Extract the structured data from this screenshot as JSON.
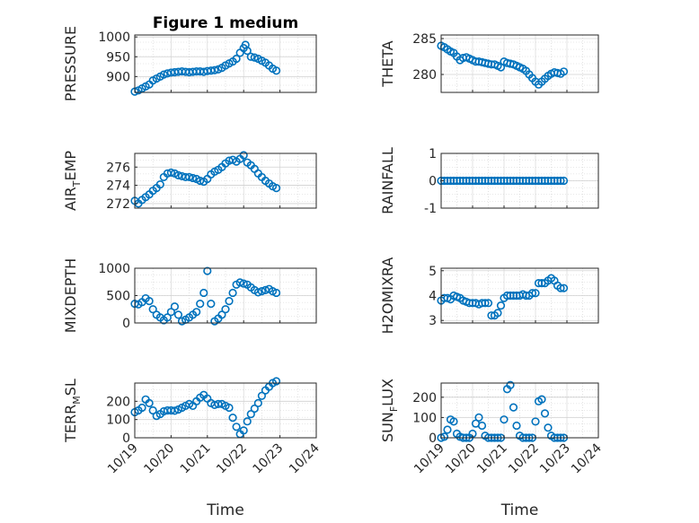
{
  "figure": {
    "title": "Figure 1 medium",
    "marker_color": "#0072BD",
    "axis_color": "#262626",
    "grid_color": "#d0d0d0"
  },
  "chart_data": [
    {
      "type": "scatter",
      "ylabel": "PRESSURE",
      "ylabel_sub": "",
      "ylabel_tail": "",
      "title": "Figure 1 medium",
      "xlim": [
        0,
        5
      ],
      "ylim": [
        860,
        1005
      ],
      "yticks": [
        900,
        950,
        1000
      ],
      "yticklabels": [
        "900",
        "950",
        "1000"
      ],
      "xticklabels": [],
      "xlabel": "",
      "x": [
        0,
        0.1,
        0.2,
        0.3,
        0.4,
        0.5,
        0.6,
        0.7,
        0.8,
        0.9,
        1,
        1.1,
        1.2,
        1.3,
        1.4,
        1.5,
        1.6,
        1.7,
        1.8,
        1.9,
        2,
        2.1,
        2.2,
        2.3,
        2.4,
        2.5,
        2.6,
        2.7,
        2.8,
        2.9,
        3,
        3.05,
        3.1,
        3.2,
        3.3,
        3.4,
        3.5,
        3.6,
        3.7,
        3.8,
        3.9
      ],
      "y": [
        862,
        865,
        870,
        875,
        880,
        890,
        895,
        900,
        905,
        908,
        910,
        911,
        912,
        913,
        912,
        911,
        912,
        913,
        913,
        912,
        914,
        915,
        916,
        918,
        922,
        928,
        933,
        938,
        945,
        960,
        972,
        980,
        965,
        950,
        948,
        945,
        940,
        935,
        928,
        920,
        915
      ]
    },
    {
      "type": "scatter",
      "ylabel": "THETA",
      "ylabel_sub": "",
      "ylabel_tail": "",
      "title": "",
      "xlim": [
        0,
        5
      ],
      "ylim": [
        277.5,
        285.5
      ],
      "yticks": [
        280,
        285
      ],
      "yticklabels": [
        "280",
        "285"
      ],
      "xticklabels": [],
      "xlabel": "",
      "x": [
        0,
        0.1,
        0.2,
        0.3,
        0.4,
        0.5,
        0.6,
        0.7,
        0.8,
        0.9,
        1,
        1.1,
        1.2,
        1.3,
        1.4,
        1.5,
        1.6,
        1.7,
        1.8,
        1.9,
        2,
        2.1,
        2.2,
        2.3,
        2.4,
        2.5,
        2.6,
        2.7,
        2.8,
        2.9,
        3,
        3.1,
        3.2,
        3.3,
        3.4,
        3.5,
        3.6,
        3.7,
        3.8,
        3.9
      ],
      "y": [
        284,
        283.8,
        283.5,
        283.2,
        283,
        282.5,
        282,
        282.3,
        282.4,
        282.2,
        282,
        281.8,
        281.8,
        281.7,
        281.6,
        281.5,
        281.4,
        281.4,
        281.2,
        281,
        281.8,
        281.6,
        281.5,
        281.4,
        281.2,
        281,
        280.8,
        280.5,
        280,
        279.5,
        279,
        278.6,
        279,
        279.4,
        279.8,
        280.1,
        280.3,
        280.2,
        280.1,
        280.4
      ]
    },
    {
      "type": "scatter",
      "ylabel": "AIR",
      "ylabel_sub": "T",
      "ylabel_tail": "EMP",
      "title": "",
      "xlim": [
        0,
        5
      ],
      "ylim": [
        271.5,
        277.5
      ],
      "yticks": [
        272,
        274,
        276
      ],
      "yticklabels": [
        "272",
        "274",
        "276"
      ],
      "xticklabels": [],
      "xlabel": "",
      "x": [
        0,
        0.1,
        0.2,
        0.3,
        0.4,
        0.5,
        0.6,
        0.7,
        0.8,
        0.9,
        1,
        1.1,
        1.2,
        1.3,
        1.4,
        1.5,
        1.6,
        1.7,
        1.8,
        1.9,
        2,
        2.1,
        2.2,
        2.3,
        2.4,
        2.5,
        2.6,
        2.7,
        2.8,
        2.9,
        3,
        3.1,
        3.2,
        3.3,
        3.4,
        3.5,
        3.6,
        3.7,
        3.8,
        3.9
      ],
      "y": [
        272.3,
        272,
        272.4,
        272.7,
        273,
        273.4,
        273.7,
        274.1,
        274.9,
        275.3,
        275.4,
        275.3,
        275.1,
        275,
        274.9,
        274.9,
        274.8,
        274.7,
        274.5,
        274.4,
        274.7,
        275.2,
        275.5,
        275.7,
        276,
        276.4,
        276.7,
        276.8,
        276.6,
        276.9,
        277.3,
        276.5,
        276.2,
        275.8,
        275.3,
        274.9,
        274.5,
        274.2,
        273.9,
        273.7
      ]
    },
    {
      "type": "scatter",
      "ylabel": "RAINFALL",
      "ylabel_sub": "",
      "ylabel_tail": "",
      "title": "",
      "xlim": [
        0,
        5
      ],
      "ylim": [
        -1,
        1
      ],
      "yticks": [
        -1,
        0,
        1
      ],
      "yticklabels": [
        "-1",
        "0",
        "1"
      ],
      "xticklabels": [],
      "xlabel": "",
      "x": [
        0,
        0.1,
        0.2,
        0.3,
        0.4,
        0.5,
        0.6,
        0.7,
        0.8,
        0.9,
        1,
        1.1,
        1.2,
        1.3,
        1.4,
        1.5,
        1.6,
        1.7,
        1.8,
        1.9,
        2,
        2.1,
        2.2,
        2.3,
        2.4,
        2.5,
        2.6,
        2.7,
        2.8,
        2.9,
        3,
        3.1,
        3.2,
        3.3,
        3.4,
        3.5,
        3.6,
        3.7,
        3.8,
        3.9
      ],
      "y": [
        0,
        0,
        0,
        0,
        0,
        0,
        0,
        0,
        0,
        0,
        0,
        0,
        0,
        0,
        0,
        0,
        0,
        0,
        0,
        0,
        0,
        0,
        0,
        0,
        0,
        0,
        0,
        0,
        0,
        0,
        0,
        0,
        0,
        0,
        0,
        0,
        0,
        0,
        0,
        0
      ]
    },
    {
      "type": "scatter",
      "ylabel": "MIXDEPTH",
      "ylabel_sub": "",
      "ylabel_tail": "",
      "title": "",
      "xlim": [
        0,
        5
      ],
      "ylim": [
        0,
        1000
      ],
      "yticks": [
        0,
        500,
        1000
      ],
      "yticklabels": [
        "0",
        "500",
        "1000"
      ],
      "xticklabels": [],
      "xlabel": "",
      "x": [
        0,
        0.1,
        0.2,
        0.3,
        0.4,
        0.5,
        0.6,
        0.7,
        0.8,
        0.9,
        1,
        1.1,
        1.2,
        1.3,
        1.4,
        1.5,
        1.6,
        1.7,
        1.8,
        1.9,
        2,
        2.1,
        2.2,
        2.3,
        2.4,
        2.5,
        2.6,
        2.7,
        2.8,
        2.9,
        3,
        3.1,
        3.2,
        3.3,
        3.4,
        3.5,
        3.6,
        3.7,
        3.8,
        3.9
      ],
      "y": [
        350,
        340,
        380,
        450,
        400,
        250,
        150,
        100,
        50,
        100,
        200,
        300,
        150,
        30,
        60,
        100,
        150,
        200,
        350,
        550,
        950,
        350,
        30,
        80,
        150,
        250,
        400,
        550,
        700,
        740,
        720,
        700,
        650,
        600,
        560,
        580,
        600,
        620,
        580,
        550
      ]
    },
    {
      "type": "scatter",
      "ylabel": "H2OMIXRA",
      "ylabel_sub": "",
      "ylabel_tail": "",
      "title": "",
      "xlim": [
        0,
        5
      ],
      "ylim": [
        2.9,
        5.1
      ],
      "yticks": [
        3,
        4,
        5
      ],
      "yticklabels": [
        "3",
        "4",
        "5"
      ],
      "xticklabels": [],
      "xlabel": "",
      "x": [
        0,
        0.1,
        0.2,
        0.3,
        0.4,
        0.5,
        0.6,
        0.7,
        0.8,
        0.9,
        1,
        1.1,
        1.2,
        1.3,
        1.4,
        1.5,
        1.6,
        1.7,
        1.8,
        1.9,
        2,
        2.1,
        2.2,
        2.3,
        2.4,
        2.5,
        2.6,
        2.7,
        2.8,
        2.9,
        3,
        3.1,
        3.2,
        3.3,
        3.4,
        3.5,
        3.6,
        3.7,
        3.8,
        3.9
      ],
      "y": [
        3.8,
        3.9,
        3.9,
        3.85,
        4,
        3.95,
        3.9,
        3.8,
        3.75,
        3.7,
        3.7,
        3.7,
        3.65,
        3.7,
        3.7,
        3.7,
        3.2,
        3.2,
        3.3,
        3.6,
        3.9,
        4,
        4,
        4,
        4,
        4,
        4.05,
        4,
        4,
        4.1,
        4.1,
        4.5,
        4.5,
        4.5,
        4.6,
        4.7,
        4.6,
        4.4,
        4.3,
        4.3
      ]
    },
    {
      "type": "scatter",
      "ylabel": "TERR",
      "ylabel_sub": "M",
      "ylabel_tail": "SL",
      "title": "",
      "xlim": [
        0,
        5
      ],
      "ylim": [
        0,
        300
      ],
      "yticks": [
        0,
        100,
        200
      ],
      "yticklabels": [
        "0",
        "100",
        "200"
      ],
      "xticklabels": [
        "10/19",
        "10/20",
        "10/21",
        "10/22",
        "10/23",
        "10/24"
      ],
      "xlabel": "Time",
      "x": [
        0,
        0.1,
        0.2,
        0.3,
        0.4,
        0.5,
        0.6,
        0.7,
        0.8,
        0.9,
        1,
        1.1,
        1.2,
        1.3,
        1.4,
        1.5,
        1.6,
        1.7,
        1.8,
        1.9,
        2,
        2.1,
        2.2,
        2.3,
        2.4,
        2.5,
        2.6,
        2.7,
        2.8,
        2.9,
        3,
        3.1,
        3.2,
        3.3,
        3.4,
        3.5,
        3.6,
        3.7,
        3.8,
        3.9
      ],
      "y": [
        140,
        150,
        165,
        210,
        190,
        150,
        120,
        130,
        145,
        150,
        150,
        148,
        155,
        165,
        175,
        185,
        175,
        200,
        220,
        235,
        215,
        190,
        180,
        185,
        185,
        175,
        165,
        110,
        60,
        20,
        40,
        90,
        130,
        160,
        190,
        230,
        260,
        280,
        300,
        310
      ]
    },
    {
      "type": "scatter",
      "ylabel": "SUN",
      "ylabel_sub": "F",
      "ylabel_tail": "LUX",
      "title": "",
      "xlim": [
        0,
        5
      ],
      "ylim": [
        0,
        270
      ],
      "yticks": [
        0,
        100,
        200
      ],
      "yticklabels": [
        "0",
        "100",
        "200"
      ],
      "xticklabels": [
        "10/19",
        "10/20",
        "10/21",
        "10/22",
        "10/23",
        "10/24"
      ],
      "xlabel": "Time",
      "x": [
        0,
        0.1,
        0.2,
        0.3,
        0.4,
        0.5,
        0.6,
        0.7,
        0.8,
        0.9,
        1,
        1.1,
        1.2,
        1.3,
        1.4,
        1.5,
        1.6,
        1.7,
        1.8,
        1.9,
        2,
        2.1,
        2.2,
        2.3,
        2.4,
        2.5,
        2.6,
        2.7,
        2.8,
        2.9,
        3,
        3.1,
        3.2,
        3.3,
        3.4,
        3.5,
        3.6,
        3.7,
        3.8,
        3.9
      ],
      "y": [
        0,
        5,
        40,
        90,
        80,
        20,
        5,
        0,
        0,
        0,
        20,
        70,
        100,
        60,
        10,
        0,
        0,
        0,
        0,
        0,
        90,
        240,
        260,
        150,
        60,
        10,
        0,
        0,
        0,
        0,
        80,
        180,
        190,
        120,
        50,
        10,
        0,
        0,
        0,
        0
      ]
    }
  ]
}
